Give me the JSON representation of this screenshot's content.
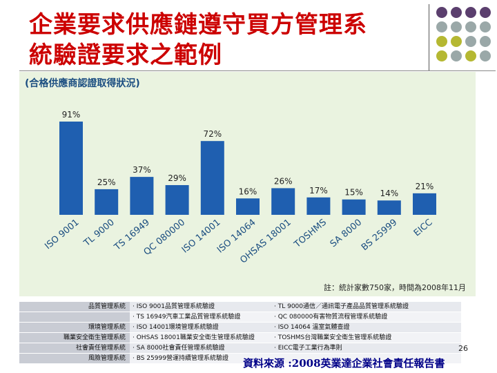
{
  "slide": {
    "title_line1": "企業要求供應鏈遵守買方管理系",
    "title_line2": "統驗證要求之範例",
    "page_number": "26",
    "source": "資料來源 :2008英業達企業社會責任報告書"
  },
  "chart_panel": {
    "heading": "(合格供應商認證取得狀況)",
    "note": "註：統計家數750家，時間為2008年11月"
  },
  "chart_data": {
    "type": "bar",
    "title": "",
    "xlabel": "",
    "ylabel": "",
    "ylim": [
      0,
      100
    ],
    "categories": [
      "ISO 9001",
      "TL 9000",
      "TS 16949",
      "QC 080000",
      "ISO 14001",
      "ISO 14064",
      "OHSAS 18001",
      "TOSHMS",
      "SA 8000",
      "BS 25999",
      "EICC"
    ],
    "values": [
      91,
      25,
      37,
      29,
      72,
      16,
      26,
      17,
      15,
      14,
      21
    ],
    "data_labels": [
      "91%",
      "25%",
      "37%",
      "29%",
      "72%",
      "16%",
      "26%",
      "17%",
      "15%",
      "14%",
      "21%"
    ],
    "bar_color": "#1f5fb0",
    "grid": false
  },
  "table": {
    "rows": [
      {
        "category": "品質管理系統",
        "left": "· ISO 9001品質管理系統驗證",
        "right": "· TL 9000通信／通訊電子產品品質管理系統驗證"
      },
      {
        "category": "",
        "left": "· TS 16949汽車工業品質管理系統驗證",
        "right": "· QC 080000有害物質流程管理系統驗證"
      },
      {
        "category": "環境管理系統",
        "left": "· ISO 14001環境管理系統驗證",
        "right": "· ISO 14064 溫室氣體查證"
      },
      {
        "category": "職業安全衛生管理系統",
        "left": "· OHSAS 18001職業安全衛生管理系統驗證",
        "right": "· TOSHMS台灣職業安全衛生管理系統驗證"
      },
      {
        "category": "社會責任管理系統",
        "left": "· SA 8000社會責任管理系統驗證",
        "right": "· EICC電子工業行為準則"
      },
      {
        "category": "風險管理系統",
        "left": "· BS 25999營運持續管理系統驗證",
        "right": ""
      }
    ]
  },
  "decor": {
    "dot_colors": [
      "#5b3f6e",
      "#9aa8a8",
      "#b5b832"
    ]
  }
}
